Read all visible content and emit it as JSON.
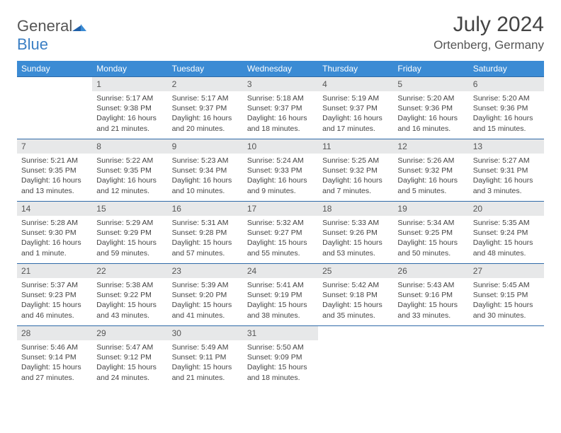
{
  "logo": {
    "word1": "General",
    "word2": "Blue"
  },
  "title": "July 2024",
  "location": "Ortenberg, Germany",
  "colors": {
    "header_bg": "#3b8bd4",
    "header_text": "#ffffff",
    "daynum_bg": "#e7e8e9",
    "rule": "#2f6aa8",
    "body_text": "#444444",
    "logo_gray": "#555555",
    "logo_blue": "#3b7fc4"
  },
  "weekdays": [
    "Sunday",
    "Monday",
    "Tuesday",
    "Wednesday",
    "Thursday",
    "Friday",
    "Saturday"
  ],
  "weeks": [
    [
      {
        "n": "",
        "sr": "",
        "ss": "",
        "dl": ""
      },
      {
        "n": "1",
        "sr": "Sunrise: 5:17 AM",
        "ss": "Sunset: 9:38 PM",
        "dl": "Daylight: 16 hours and 21 minutes."
      },
      {
        "n": "2",
        "sr": "Sunrise: 5:17 AM",
        "ss": "Sunset: 9:37 PM",
        "dl": "Daylight: 16 hours and 20 minutes."
      },
      {
        "n": "3",
        "sr": "Sunrise: 5:18 AM",
        "ss": "Sunset: 9:37 PM",
        "dl": "Daylight: 16 hours and 18 minutes."
      },
      {
        "n": "4",
        "sr": "Sunrise: 5:19 AM",
        "ss": "Sunset: 9:37 PM",
        "dl": "Daylight: 16 hours and 17 minutes."
      },
      {
        "n": "5",
        "sr": "Sunrise: 5:20 AM",
        "ss": "Sunset: 9:36 PM",
        "dl": "Daylight: 16 hours and 16 minutes."
      },
      {
        "n": "6",
        "sr": "Sunrise: 5:20 AM",
        "ss": "Sunset: 9:36 PM",
        "dl": "Daylight: 16 hours and 15 minutes."
      }
    ],
    [
      {
        "n": "7",
        "sr": "Sunrise: 5:21 AM",
        "ss": "Sunset: 9:35 PM",
        "dl": "Daylight: 16 hours and 13 minutes."
      },
      {
        "n": "8",
        "sr": "Sunrise: 5:22 AM",
        "ss": "Sunset: 9:35 PM",
        "dl": "Daylight: 16 hours and 12 minutes."
      },
      {
        "n": "9",
        "sr": "Sunrise: 5:23 AM",
        "ss": "Sunset: 9:34 PM",
        "dl": "Daylight: 16 hours and 10 minutes."
      },
      {
        "n": "10",
        "sr": "Sunrise: 5:24 AM",
        "ss": "Sunset: 9:33 PM",
        "dl": "Daylight: 16 hours and 9 minutes."
      },
      {
        "n": "11",
        "sr": "Sunrise: 5:25 AM",
        "ss": "Sunset: 9:32 PM",
        "dl": "Daylight: 16 hours and 7 minutes."
      },
      {
        "n": "12",
        "sr": "Sunrise: 5:26 AM",
        "ss": "Sunset: 9:32 PM",
        "dl": "Daylight: 16 hours and 5 minutes."
      },
      {
        "n": "13",
        "sr": "Sunrise: 5:27 AM",
        "ss": "Sunset: 9:31 PM",
        "dl": "Daylight: 16 hours and 3 minutes."
      }
    ],
    [
      {
        "n": "14",
        "sr": "Sunrise: 5:28 AM",
        "ss": "Sunset: 9:30 PM",
        "dl": "Daylight: 16 hours and 1 minute."
      },
      {
        "n": "15",
        "sr": "Sunrise: 5:29 AM",
        "ss": "Sunset: 9:29 PM",
        "dl": "Daylight: 15 hours and 59 minutes."
      },
      {
        "n": "16",
        "sr": "Sunrise: 5:31 AM",
        "ss": "Sunset: 9:28 PM",
        "dl": "Daylight: 15 hours and 57 minutes."
      },
      {
        "n": "17",
        "sr": "Sunrise: 5:32 AM",
        "ss": "Sunset: 9:27 PM",
        "dl": "Daylight: 15 hours and 55 minutes."
      },
      {
        "n": "18",
        "sr": "Sunrise: 5:33 AM",
        "ss": "Sunset: 9:26 PM",
        "dl": "Daylight: 15 hours and 53 minutes."
      },
      {
        "n": "19",
        "sr": "Sunrise: 5:34 AM",
        "ss": "Sunset: 9:25 PM",
        "dl": "Daylight: 15 hours and 50 minutes."
      },
      {
        "n": "20",
        "sr": "Sunrise: 5:35 AM",
        "ss": "Sunset: 9:24 PM",
        "dl": "Daylight: 15 hours and 48 minutes."
      }
    ],
    [
      {
        "n": "21",
        "sr": "Sunrise: 5:37 AM",
        "ss": "Sunset: 9:23 PM",
        "dl": "Daylight: 15 hours and 46 minutes."
      },
      {
        "n": "22",
        "sr": "Sunrise: 5:38 AM",
        "ss": "Sunset: 9:22 PM",
        "dl": "Daylight: 15 hours and 43 minutes."
      },
      {
        "n": "23",
        "sr": "Sunrise: 5:39 AM",
        "ss": "Sunset: 9:20 PM",
        "dl": "Daylight: 15 hours and 41 minutes."
      },
      {
        "n": "24",
        "sr": "Sunrise: 5:41 AM",
        "ss": "Sunset: 9:19 PM",
        "dl": "Daylight: 15 hours and 38 minutes."
      },
      {
        "n": "25",
        "sr": "Sunrise: 5:42 AM",
        "ss": "Sunset: 9:18 PM",
        "dl": "Daylight: 15 hours and 35 minutes."
      },
      {
        "n": "26",
        "sr": "Sunrise: 5:43 AM",
        "ss": "Sunset: 9:16 PM",
        "dl": "Daylight: 15 hours and 33 minutes."
      },
      {
        "n": "27",
        "sr": "Sunrise: 5:45 AM",
        "ss": "Sunset: 9:15 PM",
        "dl": "Daylight: 15 hours and 30 minutes."
      }
    ],
    [
      {
        "n": "28",
        "sr": "Sunrise: 5:46 AM",
        "ss": "Sunset: 9:14 PM",
        "dl": "Daylight: 15 hours and 27 minutes."
      },
      {
        "n": "29",
        "sr": "Sunrise: 5:47 AM",
        "ss": "Sunset: 9:12 PM",
        "dl": "Daylight: 15 hours and 24 minutes."
      },
      {
        "n": "30",
        "sr": "Sunrise: 5:49 AM",
        "ss": "Sunset: 9:11 PM",
        "dl": "Daylight: 15 hours and 21 minutes."
      },
      {
        "n": "31",
        "sr": "Sunrise: 5:50 AM",
        "ss": "Sunset: 9:09 PM",
        "dl": "Daylight: 15 hours and 18 minutes."
      },
      {
        "n": "",
        "sr": "",
        "ss": "",
        "dl": ""
      },
      {
        "n": "",
        "sr": "",
        "ss": "",
        "dl": ""
      },
      {
        "n": "",
        "sr": "",
        "ss": "",
        "dl": ""
      }
    ]
  ]
}
